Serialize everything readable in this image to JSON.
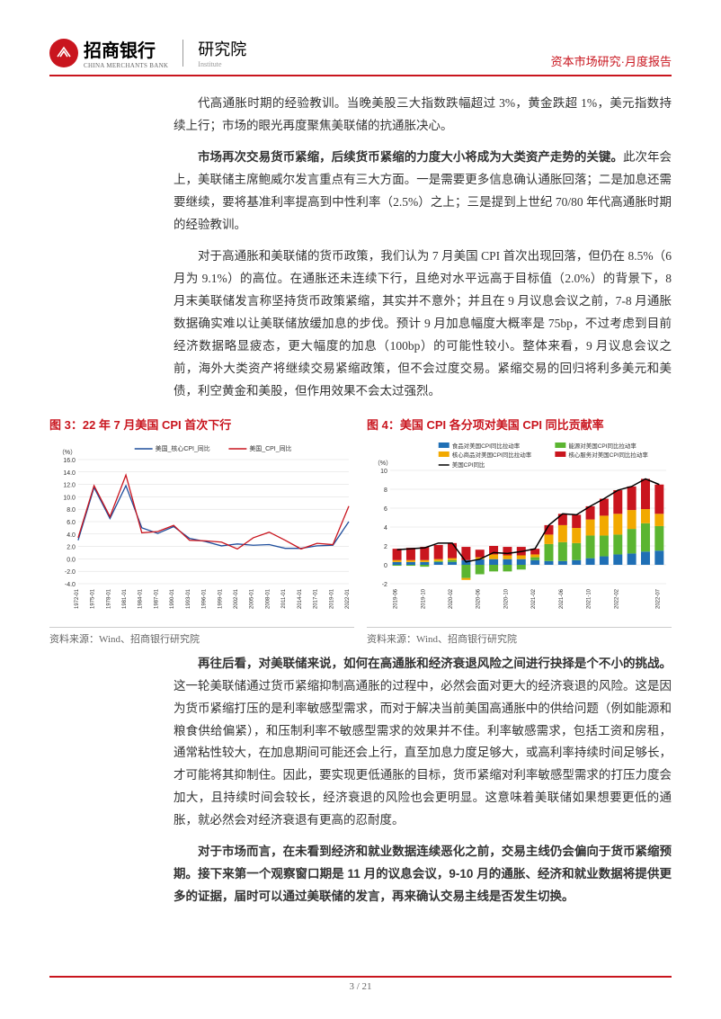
{
  "header": {
    "bank_name": "招商银行",
    "bank_sub": "CHINA MERCHANTS BANK",
    "institute": "研究院",
    "institute_sub": "Institute",
    "right": "资本市场研究·月度报告"
  },
  "paragraphs": {
    "p1": "代高通胀时期的经验教训。当晚美股三大指数跌幅超过 3%，黄金跌超 1%，美元指数持续上行；市场的眼光再度聚焦美联储的抗通胀决心。",
    "p2_bold": "市场再次交易货币紧缩，后续货币紧缩的力度大小将成为大类资产走势的关键。",
    "p2_rest": "此次年会上，美联储主席鲍威尔发言重点有三大方面。一是需要更多信息确认通胀回落；二是加息还需要继续，要将基准利率提高到中性利率（2.5%）之上；三是提到上世纪 70/80 年代高通胀时期的经验教训。",
    "p3": "对于高通胀和美联储的货币政策，我们认为 7 月美国 CPI 首次出现回落，但仍在 8.5%（6 月为 9.1%）的高位。在通胀还未连续下行，且绝对水平远高于目标值（2.0%）的背景下，8 月末美联储发言称坚持货币政策紧缩，其实并不意外；并且在 9 月议息会议之前，7-8 月通胀数据确实难以让美联储放缓加息的步伐。预计 9 月加息幅度大概率是 75bp，不过考虑到目前经济数据略显疲态，更大幅度的加息（100bp）的可能性较小。整体来看，9 月议息会议之前，海外大类资产将继续交易紧缩政策，但不会过度交易。紧缩交易的回归将利多美元和美债，利空黄金和美股，但作用效果不会太过强烈。",
    "p4_bold": "再往后看，对美联储来说，如何在高通胀和经济衰退风险之间进行抉择是个不小的挑战。",
    "p4_rest": "这一轮美联储通过货币紧缩抑制高通胀的过程中，必然会面对更大的经济衰退的风险。这是因为货币紧缩打压的是利率敏感型需求，而对于解决当前美国高通胀中的供给问题（例如能源和粮食供给偏紧），和压制利率不敏感型需求的效果并不佳。利率敏感需求，包括工资和房租，通常粘性较大，在加息期间可能还会上行，直至加息力度足够大，或高利率持续时间足够长，才可能将其抑制住。因此，要实现更低通胀的目标，货币紧缩对利率敏感型需求的打压力度会加大，且持续时间会较长，经济衰退的风险也会更明显。这意味着美联储如果想要更低的通胀，就必然会对经济衰退有更高的忍耐度。",
    "p5_bold": "对于市场而言，在未看到经济和就业数据连续恶化之前，交易主线仍会偏向于货币紧缩预期。接下来第一个观察窗口期是 11 月的议息会议，9-10 月的通胀、经济和就业数据将提供更多的证据，届时可以通过美联储的发言，再来确认交易主线是否发生切换。"
  },
  "chart3": {
    "title": "图 3：22 年 7 月美国 CPI 首次下行",
    "source": "资料来源：Wind、招商银行研究院",
    "type": "line",
    "ylabel": "（%）",
    "legend": [
      "美国_核心CPI_同比",
      "美国_CPI_同比"
    ],
    "legend_colors": [
      "#1f4e9c",
      "#c9151e"
    ],
    "ylim": [
      -4,
      16
    ],
    "yticks": [
      -4,
      -2,
      0,
      2,
      4,
      6,
      8,
      10,
      12,
      14,
      16
    ],
    "xticks": [
      "1972-01",
      "1975-01",
      "1978-01",
      "1981-01",
      "1984-01",
      "1987-01",
      "1990-01",
      "1993-01",
      "1996-01",
      "1999-01",
      "2002-01",
      "2005-01",
      "2008-01",
      "2011-01",
      "2014-01",
      "2017-01",
      "2019-01",
      "2022-01"
    ],
    "series_core": [
      3.0,
      11.5,
      6.5,
      11.8,
      5.0,
      4.1,
      5.2,
      3.3,
      2.8,
      2.1,
      2.4,
      2.2,
      2.3,
      1.7,
      1.7,
      2.1,
      2.2,
      6.0
    ],
    "series_cpi": [
      3.4,
      11.8,
      6.8,
      13.5,
      4.2,
      4.4,
      5.4,
      3.0,
      2.9,
      2.7,
      1.6,
      3.4,
      4.3,
      3.0,
      1.6,
      2.5,
      2.3,
      8.5
    ],
    "background_color": "#ffffff",
    "grid_color": "#d9d9d9",
    "line_width": 1.3
  },
  "chart4": {
    "title": "图 4：美国 CPI 各分项对美国 CPI 同比贡献率",
    "source": "资料来源：Wind、招商银行研究院",
    "type": "stacked-bar-line",
    "ylabel": "（%）",
    "legend": [
      "食品对美国CPI同比拉动率",
      "能源对美国CPI同比拉动率",
      "核心商品对美国CPI同比拉动率",
      "核心服务对美国CPI同比拉动率",
      "美国CPI同比"
    ],
    "legend_colors": [
      "#1f6fb5",
      "#5bb531",
      "#f2a900",
      "#c9151e",
      "#000000"
    ],
    "ylim": [
      -2,
      10
    ],
    "yticks": [
      -2,
      0,
      2,
      4,
      6,
      8,
      10
    ],
    "xticks": [
      "2019-06",
      "2019-10",
      "2020-02",
      "2020-06",
      "2020-10",
      "2021-02",
      "2021-06",
      "2021-10",
      "2022-02",
      "2022-07"
    ],
    "x_all": [
      "2019-06",
      "2019-08",
      "2019-10",
      "2019-12",
      "2020-02",
      "2020-04",
      "2020-06",
      "2020-08",
      "2020-10",
      "2020-12",
      "2021-02",
      "2021-04",
      "2021-06",
      "2021-08",
      "2021-10",
      "2021-12",
      "2022-02",
      "2022-04",
      "2022-06",
      "2022-07"
    ],
    "stack": {
      "food": [
        0.3,
        0.3,
        0.3,
        0.3,
        0.3,
        0.5,
        0.6,
        0.6,
        0.6,
        0.6,
        0.5,
        0.4,
        0.4,
        0.5,
        0.7,
        0.9,
        1.1,
        1.2,
        1.4,
        1.5
      ],
      "energy": [
        -0.1,
        -0.1,
        -0.2,
        0.1,
        0.2,
        -1.4,
        -1.0,
        -0.7,
        -0.7,
        -0.5,
        0.3,
        1.8,
        2.0,
        1.8,
        2.4,
        2.2,
        2.1,
        2.6,
        3.0,
        2.6
      ],
      "core_goods": [
        0.2,
        0.2,
        0.2,
        0.2,
        0.2,
        -0.2,
        0.2,
        0.5,
        0.4,
        0.4,
        0.3,
        1.0,
        1.8,
        1.6,
        1.7,
        2.1,
        2.2,
        2.0,
        1.5,
        1.3
      ],
      "core_svc": [
        1.2,
        1.3,
        1.4,
        1.5,
        1.6,
        1.4,
        0.8,
        0.9,
        0.9,
        0.9,
        0.6,
        1.0,
        1.2,
        1.4,
        1.4,
        1.8,
        2.5,
        2.5,
        3.2,
        3.1
      ]
    },
    "cpi_line": [
      1.6,
      1.7,
      1.8,
      2.3,
      2.3,
      0.3,
      0.6,
      1.3,
      1.2,
      1.4,
      1.7,
      4.2,
      5.4,
      5.3,
      6.2,
      7.0,
      7.9,
      8.3,
      9.1,
      8.5
    ],
    "background_color": "#ffffff",
    "grid_color": "#d9d9d9",
    "bar_width": 0.65,
    "line_width": 1.5
  },
  "footer": {
    "page": "3 / 21"
  }
}
